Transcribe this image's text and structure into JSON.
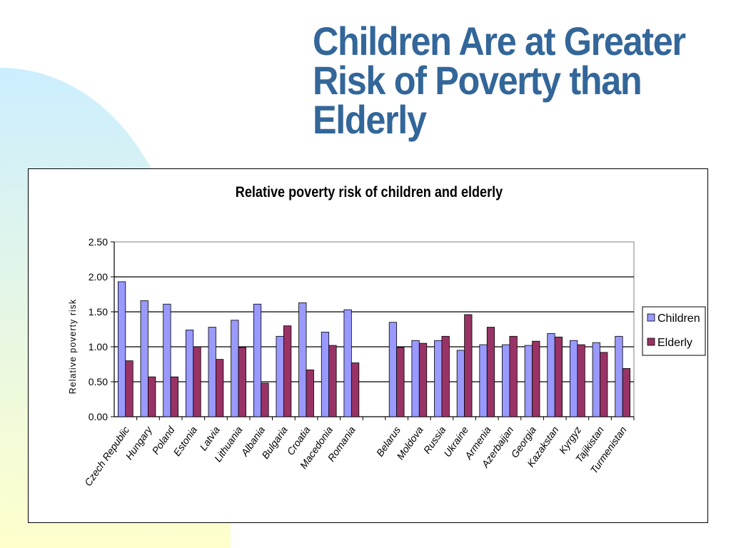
{
  "slide": {
    "title_lines": [
      "Children Are at Greater",
      "Risk of Poverty than",
      "Elderly"
    ]
  },
  "colors": {
    "title": "#336699",
    "children": "#9999ff",
    "elderly": "#993366",
    "decor_blue": "#cceeff",
    "decor_yellow": "#ffffcc"
  },
  "chart_data": {
    "type": "bar",
    "title": "Relative poverty risk of children and elderly",
    "ylabel": "Relative poverty risk",
    "xlabel": "",
    "ylim": [
      0,
      2.5
    ],
    "yticks": [
      "0.00",
      "0.50",
      "1.00",
      "1.50",
      "2.00",
      "2.50"
    ],
    "grid": true,
    "legend_position": "right",
    "categories": [
      "Czech Republic",
      "Hungary",
      "Poland",
      "Estonia",
      "Latvia",
      "Lithuania",
      "Albania",
      "Bulgaria",
      "Croatia",
      "Macedonia",
      "Romania",
      "",
      "Belarus",
      "Moldova",
      "Russia",
      "Ukraine",
      "Armenia",
      "Azerbaijan",
      "Georgia",
      "Kazakstan",
      "Kyrgyz",
      "Tajikistan",
      "Turmenistan"
    ],
    "series": [
      {
        "name": "Children",
        "values": [
          1.93,
          1.66,
          1.61,
          1.24,
          1.28,
          1.38,
          1.61,
          1.15,
          1.63,
          1.21,
          1.53,
          null,
          1.35,
          1.09,
          1.09,
          0.95,
          1.03,
          1.03,
          1.02,
          1.19,
          1.09,
          1.06,
          1.15
        ]
      },
      {
        "name": "Elderly",
        "values": [
          0.8,
          0.57,
          0.57,
          1.0,
          0.82,
          0.99,
          0.48,
          1.3,
          0.67,
          1.02,
          0.77,
          null,
          0.99,
          1.05,
          1.15,
          1.46,
          1.28,
          1.15,
          1.08,
          1.14,
          1.03,
          0.92,
          0.69
        ]
      }
    ]
  }
}
